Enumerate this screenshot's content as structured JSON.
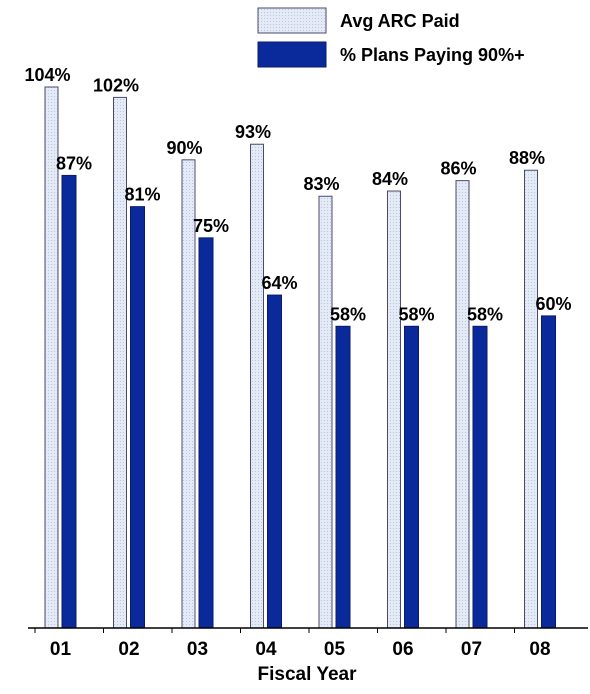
{
  "chart_data": {
    "type": "bar",
    "title": "",
    "xlabel": "Fiscal Year",
    "ylabel": "",
    "ylim": [
      0,
      104
    ],
    "grid": false,
    "legend_position": "top-right",
    "categories": [
      "01",
      "02",
      "03",
      "04",
      "05",
      "06",
      "07",
      "08"
    ],
    "series": [
      {
        "name": "Avg ARC Paid",
        "values": [
          104,
          102,
          90,
          93,
          83,
          84,
          86,
          88
        ],
        "labels": [
          "104%",
          "102%",
          "90%",
          "93%",
          "83%",
          "84%",
          "86%",
          "88%"
        ],
        "color": "#dfe6f3",
        "pattern": "dotted"
      },
      {
        "name": "% Plans Paying 90%+",
        "values": [
          87,
          81,
          75,
          64,
          58,
          58,
          58,
          60
        ],
        "labels": [
          "87%",
          "81%",
          "75%",
          "64%",
          "58%",
          "58%",
          "58%",
          "60%"
        ],
        "color": "#0a2a9c",
        "pattern": "solid"
      }
    ]
  }
}
